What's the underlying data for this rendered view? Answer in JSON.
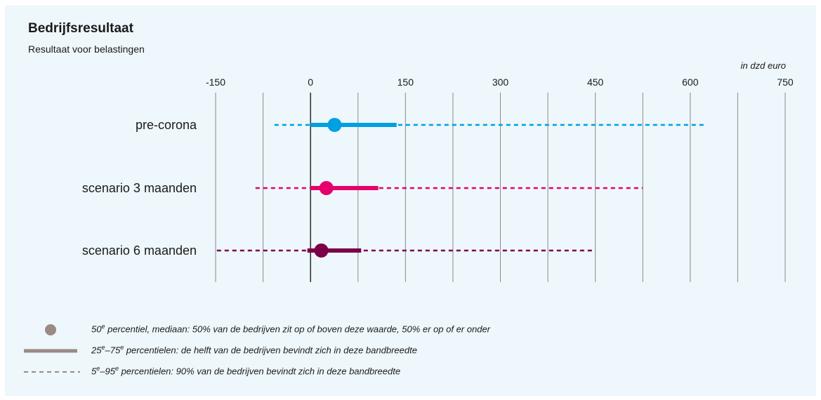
{
  "title": "Bedrijfsresultaat",
  "subtitle": "Resultaat  voor belastingen",
  "unit": "in dzd euro",
  "legend": {
    "median": {
      "pre": "50",
      "sup": "e",
      "post": " percentiel, mediaan: 50% van de bedrijven zit op of boven deze waarde, 50% er op of er onder"
    },
    "iqr": {
      "a": "25",
      "sup1": "e",
      "mid": "–75",
      "sup2": "e",
      "post": " percentielen: de helft van de bedrijven bevindt zich in deze bandbreedte"
    },
    "range": {
      "a": "5",
      "sup1": "e",
      "mid": "–95",
      "sup2": "e",
      "post": " percentielen: 90% van de bedrijven bevindt zich in deze bandbreedte"
    },
    "legend_color": "#9a8a83"
  },
  "chart_data": {
    "type": "dot-range",
    "title": "Bedrijfsresultaat",
    "subtitle": "Resultaat  voor belastingen",
    "xlabel": "in dzd euro",
    "xlim": [
      -150,
      750
    ],
    "gridlines": [
      -150,
      -75,
      0,
      75,
      150,
      225,
      300,
      375,
      450,
      525,
      600,
      675,
      750
    ],
    "tick_labels": [
      "-150",
      "0",
      "150",
      "300",
      "450",
      "600",
      "750"
    ],
    "tick_values": [
      -150,
      0,
      150,
      300,
      450,
      600,
      750
    ],
    "series": [
      {
        "label": "pre-corona",
        "color": "#00a0e3",
        "p5": -57,
        "p25": 0,
        "median": 38,
        "p75": 136,
        "p95": 625
      },
      {
        "label": "scenario 3 maanden",
        "color": "#e5006b",
        "p5": -87,
        "p25": 0,
        "median": 25,
        "p75": 107,
        "p95": 525
      },
      {
        "label": "scenario 6 maanden",
        "color": "#7b0047",
        "p5": -148,
        "p25": -5,
        "median": 17,
        "p75": 80,
        "p95": 447
      }
    ]
  }
}
